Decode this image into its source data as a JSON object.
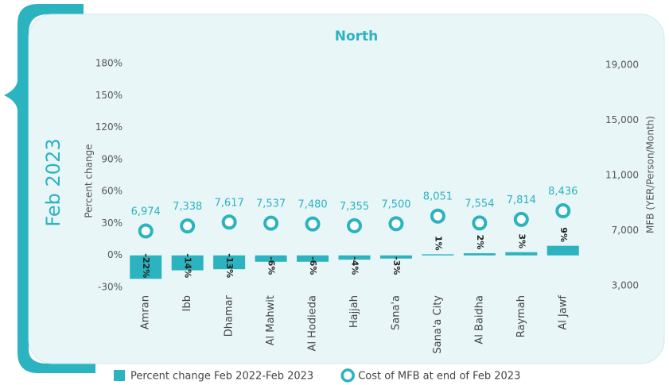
{
  "chart_data": {
    "type": "bar",
    "title": "North",
    "side_label": "Feb 2023",
    "ylabel": "Percent change",
    "y2label": "MFB (YER/Person/Month)",
    "categories": [
      "Amran",
      "Ibb",
      "Dhamar",
      "Al Mahwit",
      "Al Hodieda",
      "Hajjah",
      "Sana'a",
      "Sana'a City",
      "Al Baidha",
      "Raymah",
      "Al Jawf"
    ],
    "series": [
      {
        "name": "Percent change Feb 2022-Feb 2023",
        "type": "bar",
        "color": "#2bb3c0",
        "values": [
          -22,
          -14,
          -13,
          -6,
          -6,
          -4,
          -3,
          1,
          2,
          3,
          9
        ],
        "value_labels": [
          "-22%",
          "-14%",
          "-13%",
          "-6%",
          "-6%",
          "-4%",
          "-3%",
          "1%",
          "2%",
          "3%",
          "9%"
        ]
      },
      {
        "name": "Cost of MFB at end of Feb 2023",
        "type": "scatter",
        "axis": "y2",
        "color": "#2bb3c0",
        "values": [
          6974,
          7338,
          7617,
          7537,
          7480,
          7355,
          7500,
          8051,
          7554,
          7814,
          8436
        ],
        "value_labels": [
          "6,974",
          "7,338",
          "7,617",
          "7,537",
          "7,480",
          "7,355",
          "7,500",
          "8,051",
          "7,554",
          "7,814",
          "8,436"
        ]
      }
    ],
    "ylim": [
      -30,
      180
    ],
    "yticks": [
      {
        "value": -30,
        "label": "-30%"
      },
      {
        "value": 0,
        "label": "0%"
      },
      {
        "value": 30,
        "label": "30%"
      },
      {
        "value": 60,
        "label": "60%"
      },
      {
        "value": 90,
        "label": "90%"
      },
      {
        "value": 120,
        "label": "120%"
      },
      {
        "value": 150,
        "label": "150%"
      },
      {
        "value": 180,
        "label": "180%"
      }
    ],
    "y2lim": [
      3000,
      19000
    ],
    "y2ticks": [
      {
        "value": 3000,
        "label": "3,000"
      },
      {
        "value": 7000,
        "label": "7,000"
      },
      {
        "value": 11000,
        "label": "11,000"
      },
      {
        "value": 15000,
        "label": "15,000"
      },
      {
        "value": 19000,
        "label": "19,000"
      }
    ]
  }
}
